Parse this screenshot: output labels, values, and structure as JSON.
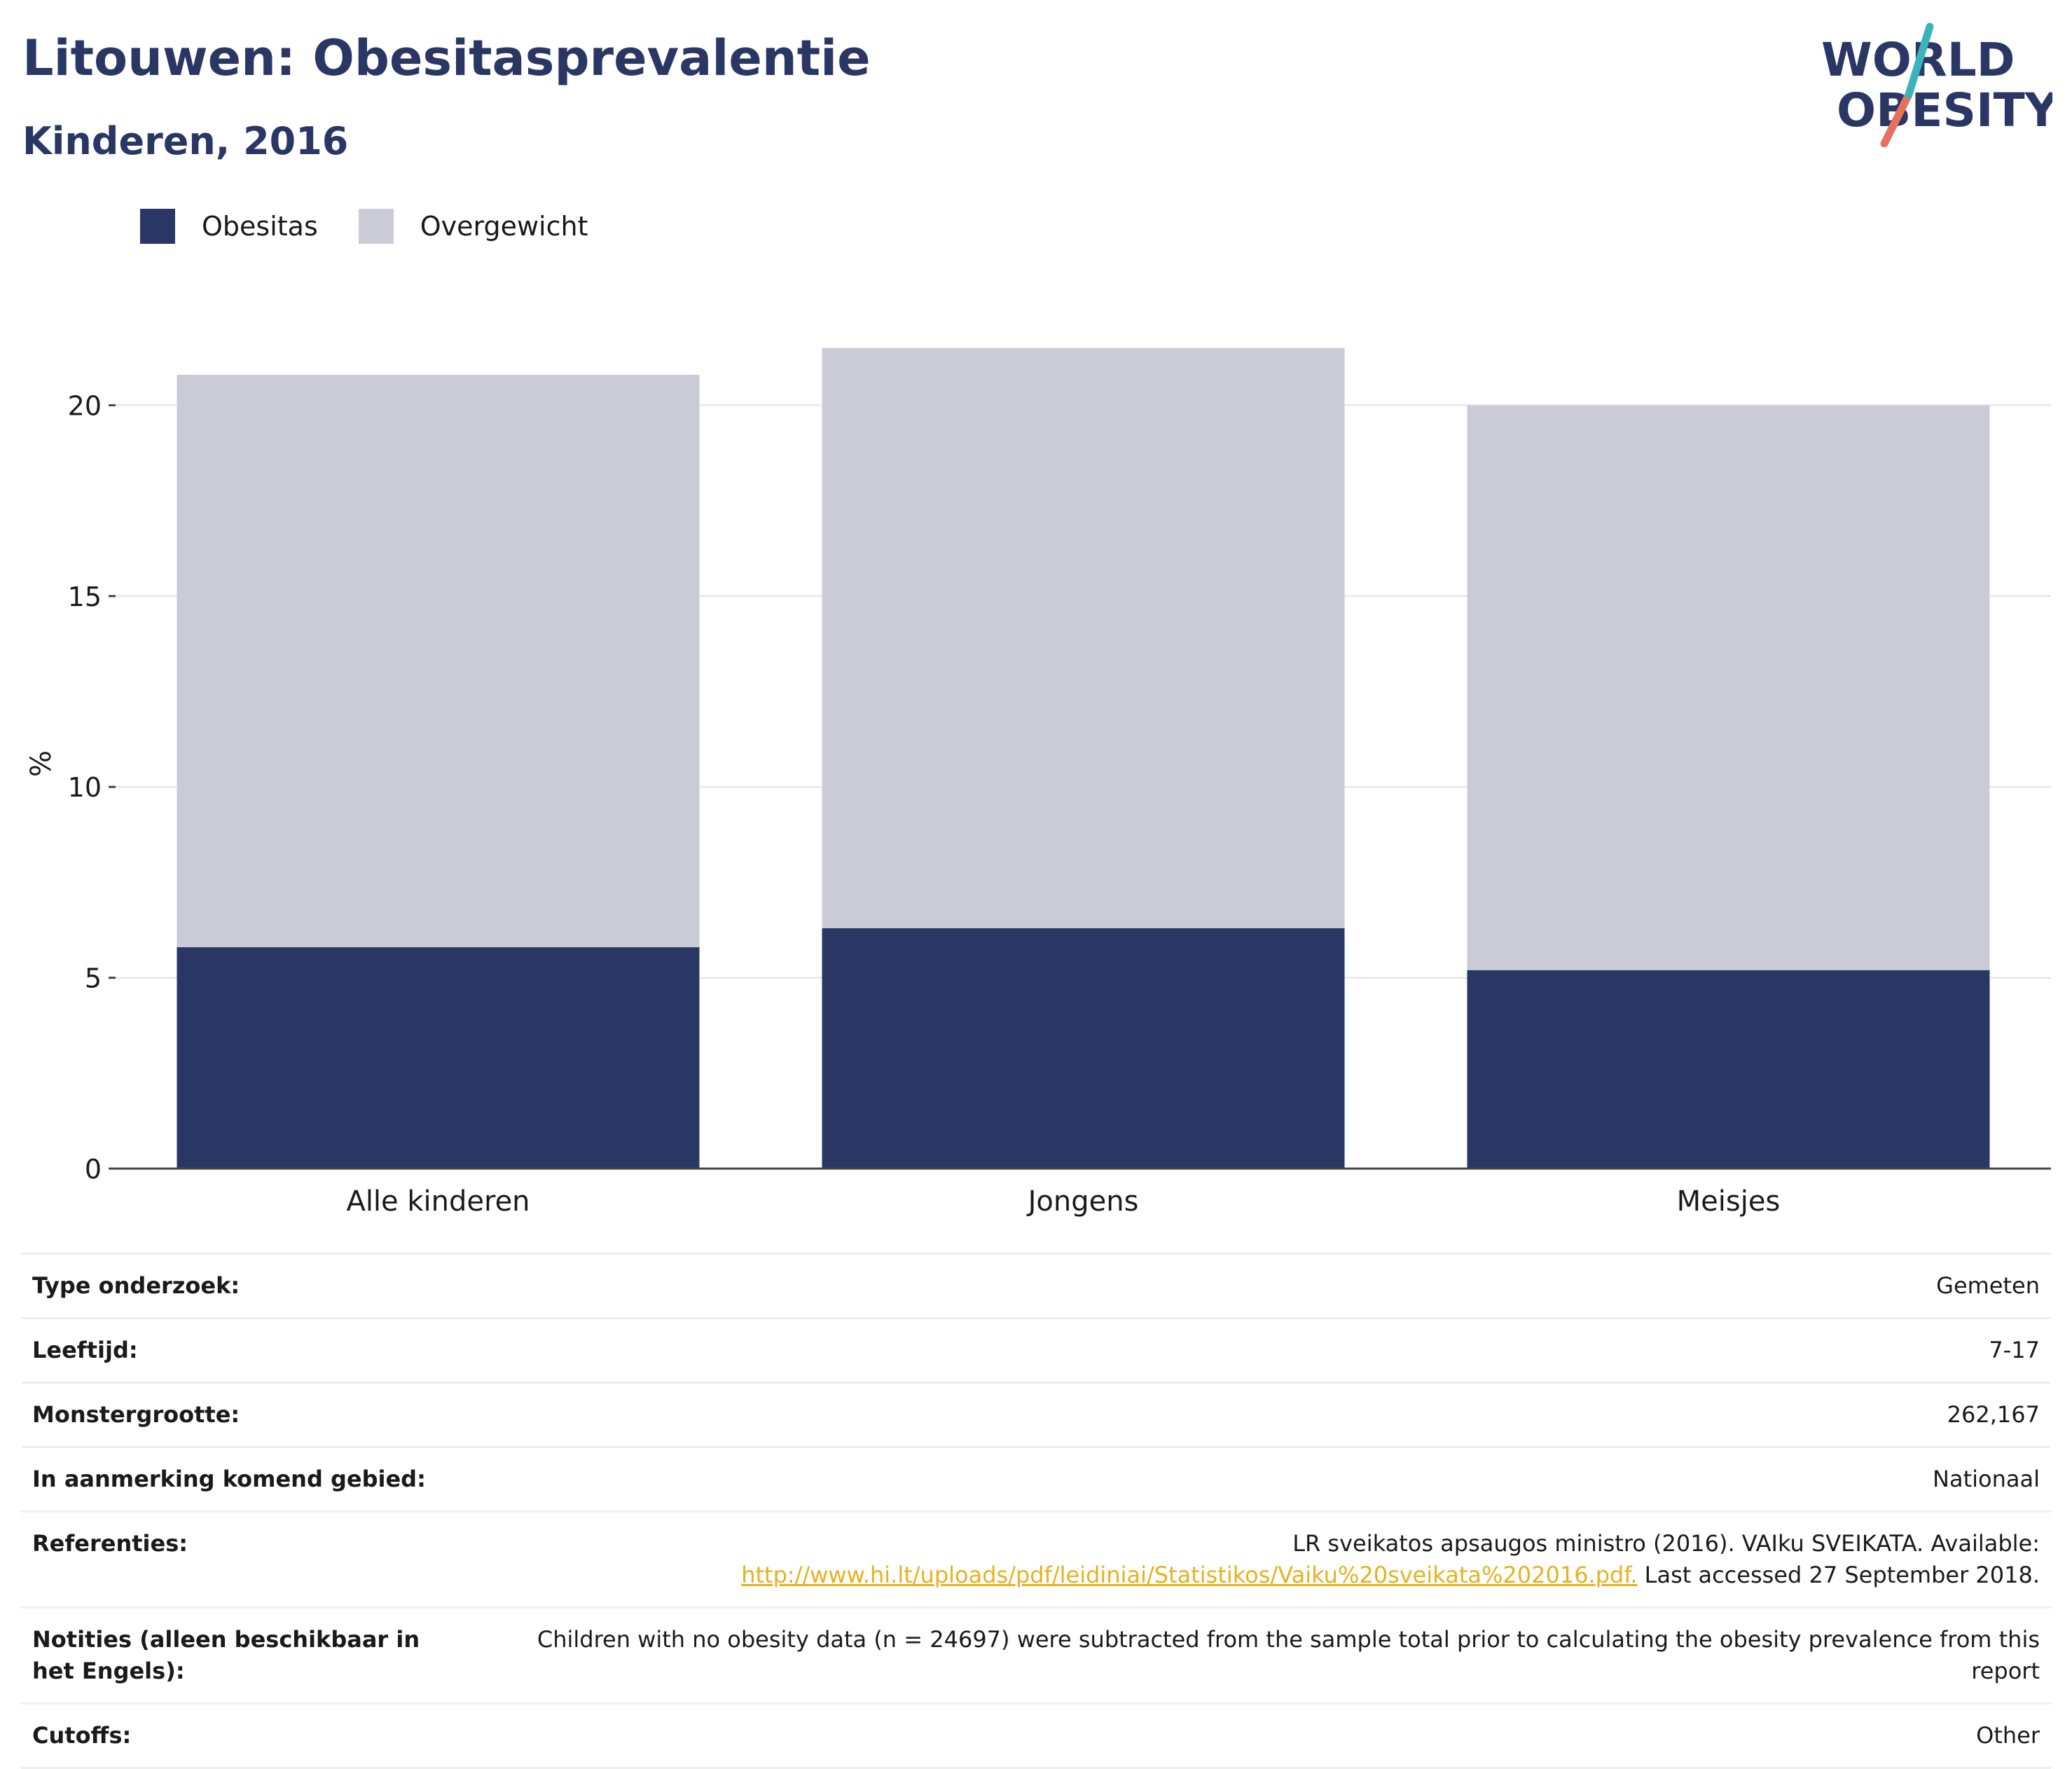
{
  "header": {
    "title": "Litouwen: Obesitasprevalentie",
    "subtitle": "Kinderen, 2016"
  },
  "logo": {
    "line1": "WORLD",
    "line2": "OBESITY"
  },
  "colors": {
    "obesity": "#2a3764",
    "overweight": "#cacbd7",
    "accent_teal": "#3bb3b9",
    "accent_coral": "#e8705f",
    "link": "#e6b21f"
  },
  "chart_data": {
    "type": "bar",
    "stacked": true,
    "categories": [
      "Alle kinderen",
      "Jongens",
      "Meisjes"
    ],
    "series": [
      {
        "name": "Obesitas",
        "values": [
          5.8,
          6.3,
          5.2
        ]
      },
      {
        "name": "Overgewicht",
        "values": [
          15.0,
          15.2,
          14.8
        ]
      }
    ],
    "ylabel": "%",
    "ylim": [
      0,
      23
    ],
    "yticks": [
      0,
      5,
      10,
      15,
      20
    ],
    "grid": true,
    "legend_position": "top-left"
  },
  "meta": {
    "rows": [
      {
        "key": "Type onderzoek:",
        "value": "Gemeten"
      },
      {
        "key": "Leeftijd:",
        "value": "7-17"
      },
      {
        "key": "Monstergrootte:",
        "value": "262,167"
      },
      {
        "key": "In aanmerking komend gebied:",
        "value": "Nationaal"
      }
    ],
    "references": {
      "key": "Referenties:",
      "text_before": "LR sveikatos apsaugos ministro (2016). VAIku SVEIKATA. Available:",
      "link": "http://www.hi.lt/uploads/pdf/leidiniai/Statistikos/Vaiku%20sveikata%202016.pdf.",
      "text_after": " Last accessed 27 September 2018."
    },
    "notes": {
      "key": "Notities (alleen beschikbaar in het Engels):",
      "value": "Children with no obesity data (n = 24697) were subtracted from the sample total prior to calculating the obesity prevalence from this report"
    },
    "cutoffs": {
      "key": "Cutoffs:",
      "value": "Other"
    }
  }
}
